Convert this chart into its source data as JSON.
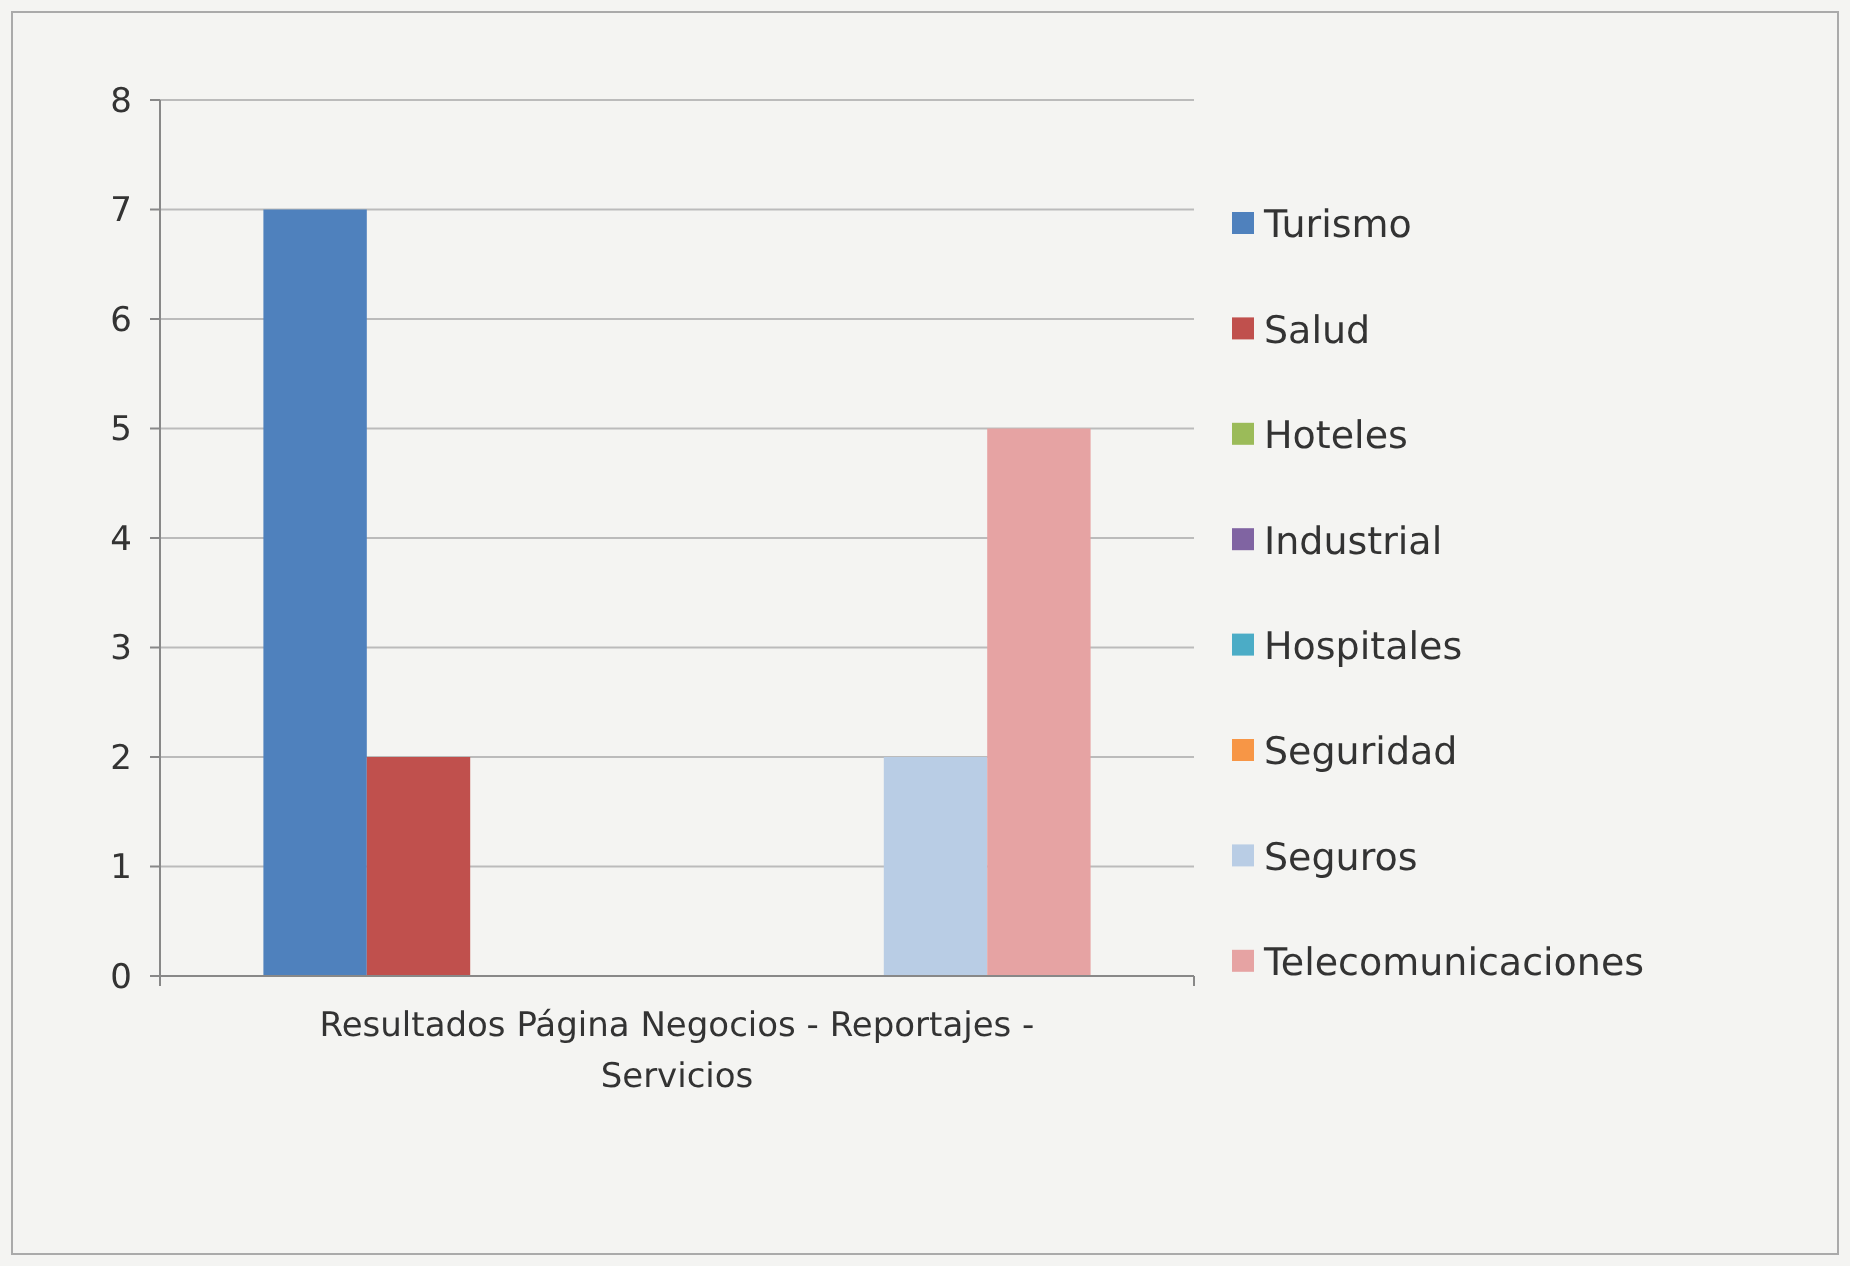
{
  "chart_data": {
    "type": "bar",
    "categories": [
      "Resultados Página Negocios - Reportajes - Servicios"
    ],
    "series": [
      {
        "name": "Turismo",
        "color": "#4f81bd",
        "values": [
          7
        ]
      },
      {
        "name": "Salud",
        "color": "#c0504d",
        "values": [
          2
        ]
      },
      {
        "name": "Hoteles",
        "color": "#9bbb59",
        "values": [
          0
        ]
      },
      {
        "name": "Industrial",
        "color": "#8064a2",
        "values": [
          0
        ]
      },
      {
        "name": "Hospitales",
        "color": "#4bacc6",
        "values": [
          0
        ]
      },
      {
        "name": "Seguridad",
        "color": "#f79646",
        "values": [
          0
        ]
      },
      {
        "name": "Seguros",
        "color": "#b9cde5",
        "values": [
          2
        ]
      },
      {
        "name": "Telecomunicaciones",
        "color": "#e6a3a3",
        "values": [
          5
        ]
      }
    ],
    "ylim": [
      0,
      8
    ],
    "yticks": [
      0,
      1,
      2,
      3,
      4,
      5,
      6,
      7,
      8
    ],
    "grid": "y",
    "legend": "right"
  }
}
